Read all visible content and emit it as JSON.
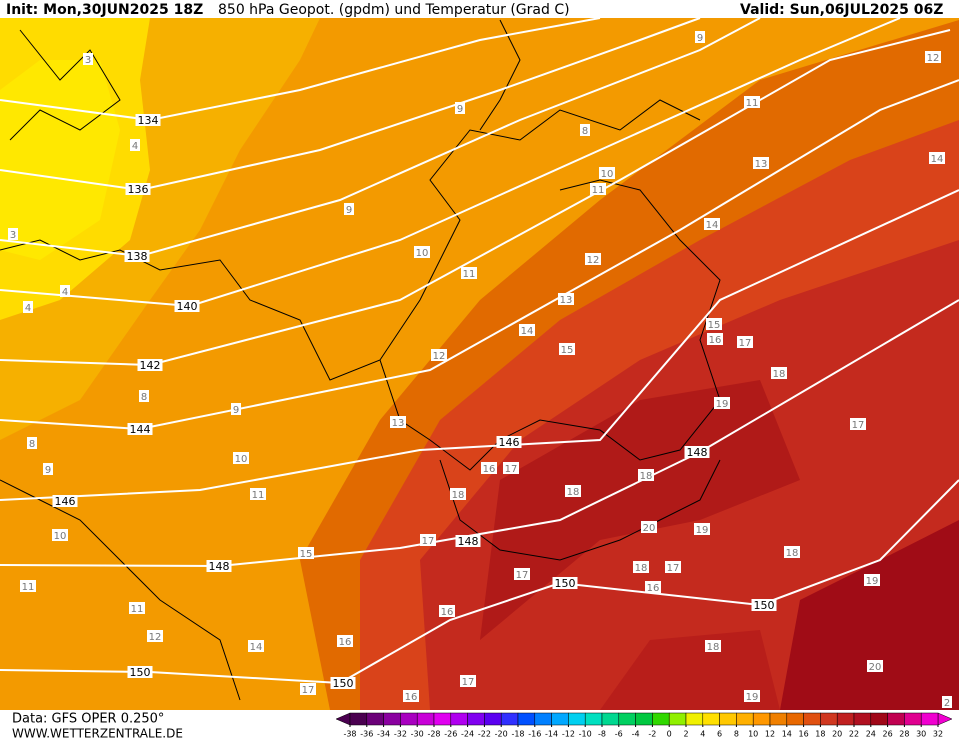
{
  "header": {
    "init": "Init: Mon,30JUN2025 18Z",
    "title": "850 hPa Geopot. (gpdm) und Temperatur (Grad C)",
    "valid": "Valid: Sun,06JUL2025 06Z"
  },
  "footer": {
    "data": "Data: GFS OPER 0.250°",
    "site": "WWW.WETTERZENTRALE.DE"
  },
  "geopotential_labels": [
    134,
    136,
    138,
    140,
    142,
    144,
    146,
    148,
    150,
    146,
    148,
    148,
    150,
    150,
    150
  ],
  "temperature_labels": [
    3,
    4,
    3,
    4,
    4,
    8,
    9,
    8,
    9,
    10,
    10,
    11,
    11,
    11,
    12,
    9,
    9,
    10,
    11,
    12,
    13,
    10,
    11,
    12,
    13,
    14,
    15,
    14,
    13,
    12,
    14,
    11,
    15,
    16,
    17,
    18,
    19,
    17,
    15,
    14,
    16,
    17,
    16,
    17,
    18,
    19,
    20,
    19,
    18,
    20,
    19,
    17,
    18,
    16,
    17,
    18,
    18,
    17,
    16,
    18,
    17,
    16,
    9,
    8,
    2
  ],
  "colorbar": {
    "ticks": [
      -38,
      -36,
      -34,
      -32,
      -30,
      -28,
      -26,
      -24,
      -22,
      -20,
      -18,
      -16,
      -14,
      -12,
      -10,
      -8,
      -6,
      -4,
      -2,
      0,
      2,
      4,
      6,
      8,
      10,
      12,
      14,
      16,
      18,
      20,
      22,
      24,
      26,
      28,
      30,
      32
    ],
    "colors": [
      "#4a0050",
      "#6a0078",
      "#8a00a0",
      "#a800c0",
      "#c800d8",
      "#e000f0",
      "#b000f0",
      "#8000f0",
      "#5a00f0",
      "#3030ff",
      "#0050ff",
      "#0080ff",
      "#00a8ff",
      "#00d0f0",
      "#00e0c0",
      "#00d890",
      "#00d060",
      "#00c840",
      "#30d800",
      "#90f000",
      "#f0f000",
      "#ffe000",
      "#ffc800",
      "#ffb000",
      "#ff9800",
      "#f08000",
      "#e86800",
      "#e05010",
      "#d03820",
      "#c02020",
      "#b01020",
      "#a00818",
      "#c00050",
      "#e00090",
      "#f000d0"
    ]
  }
}
